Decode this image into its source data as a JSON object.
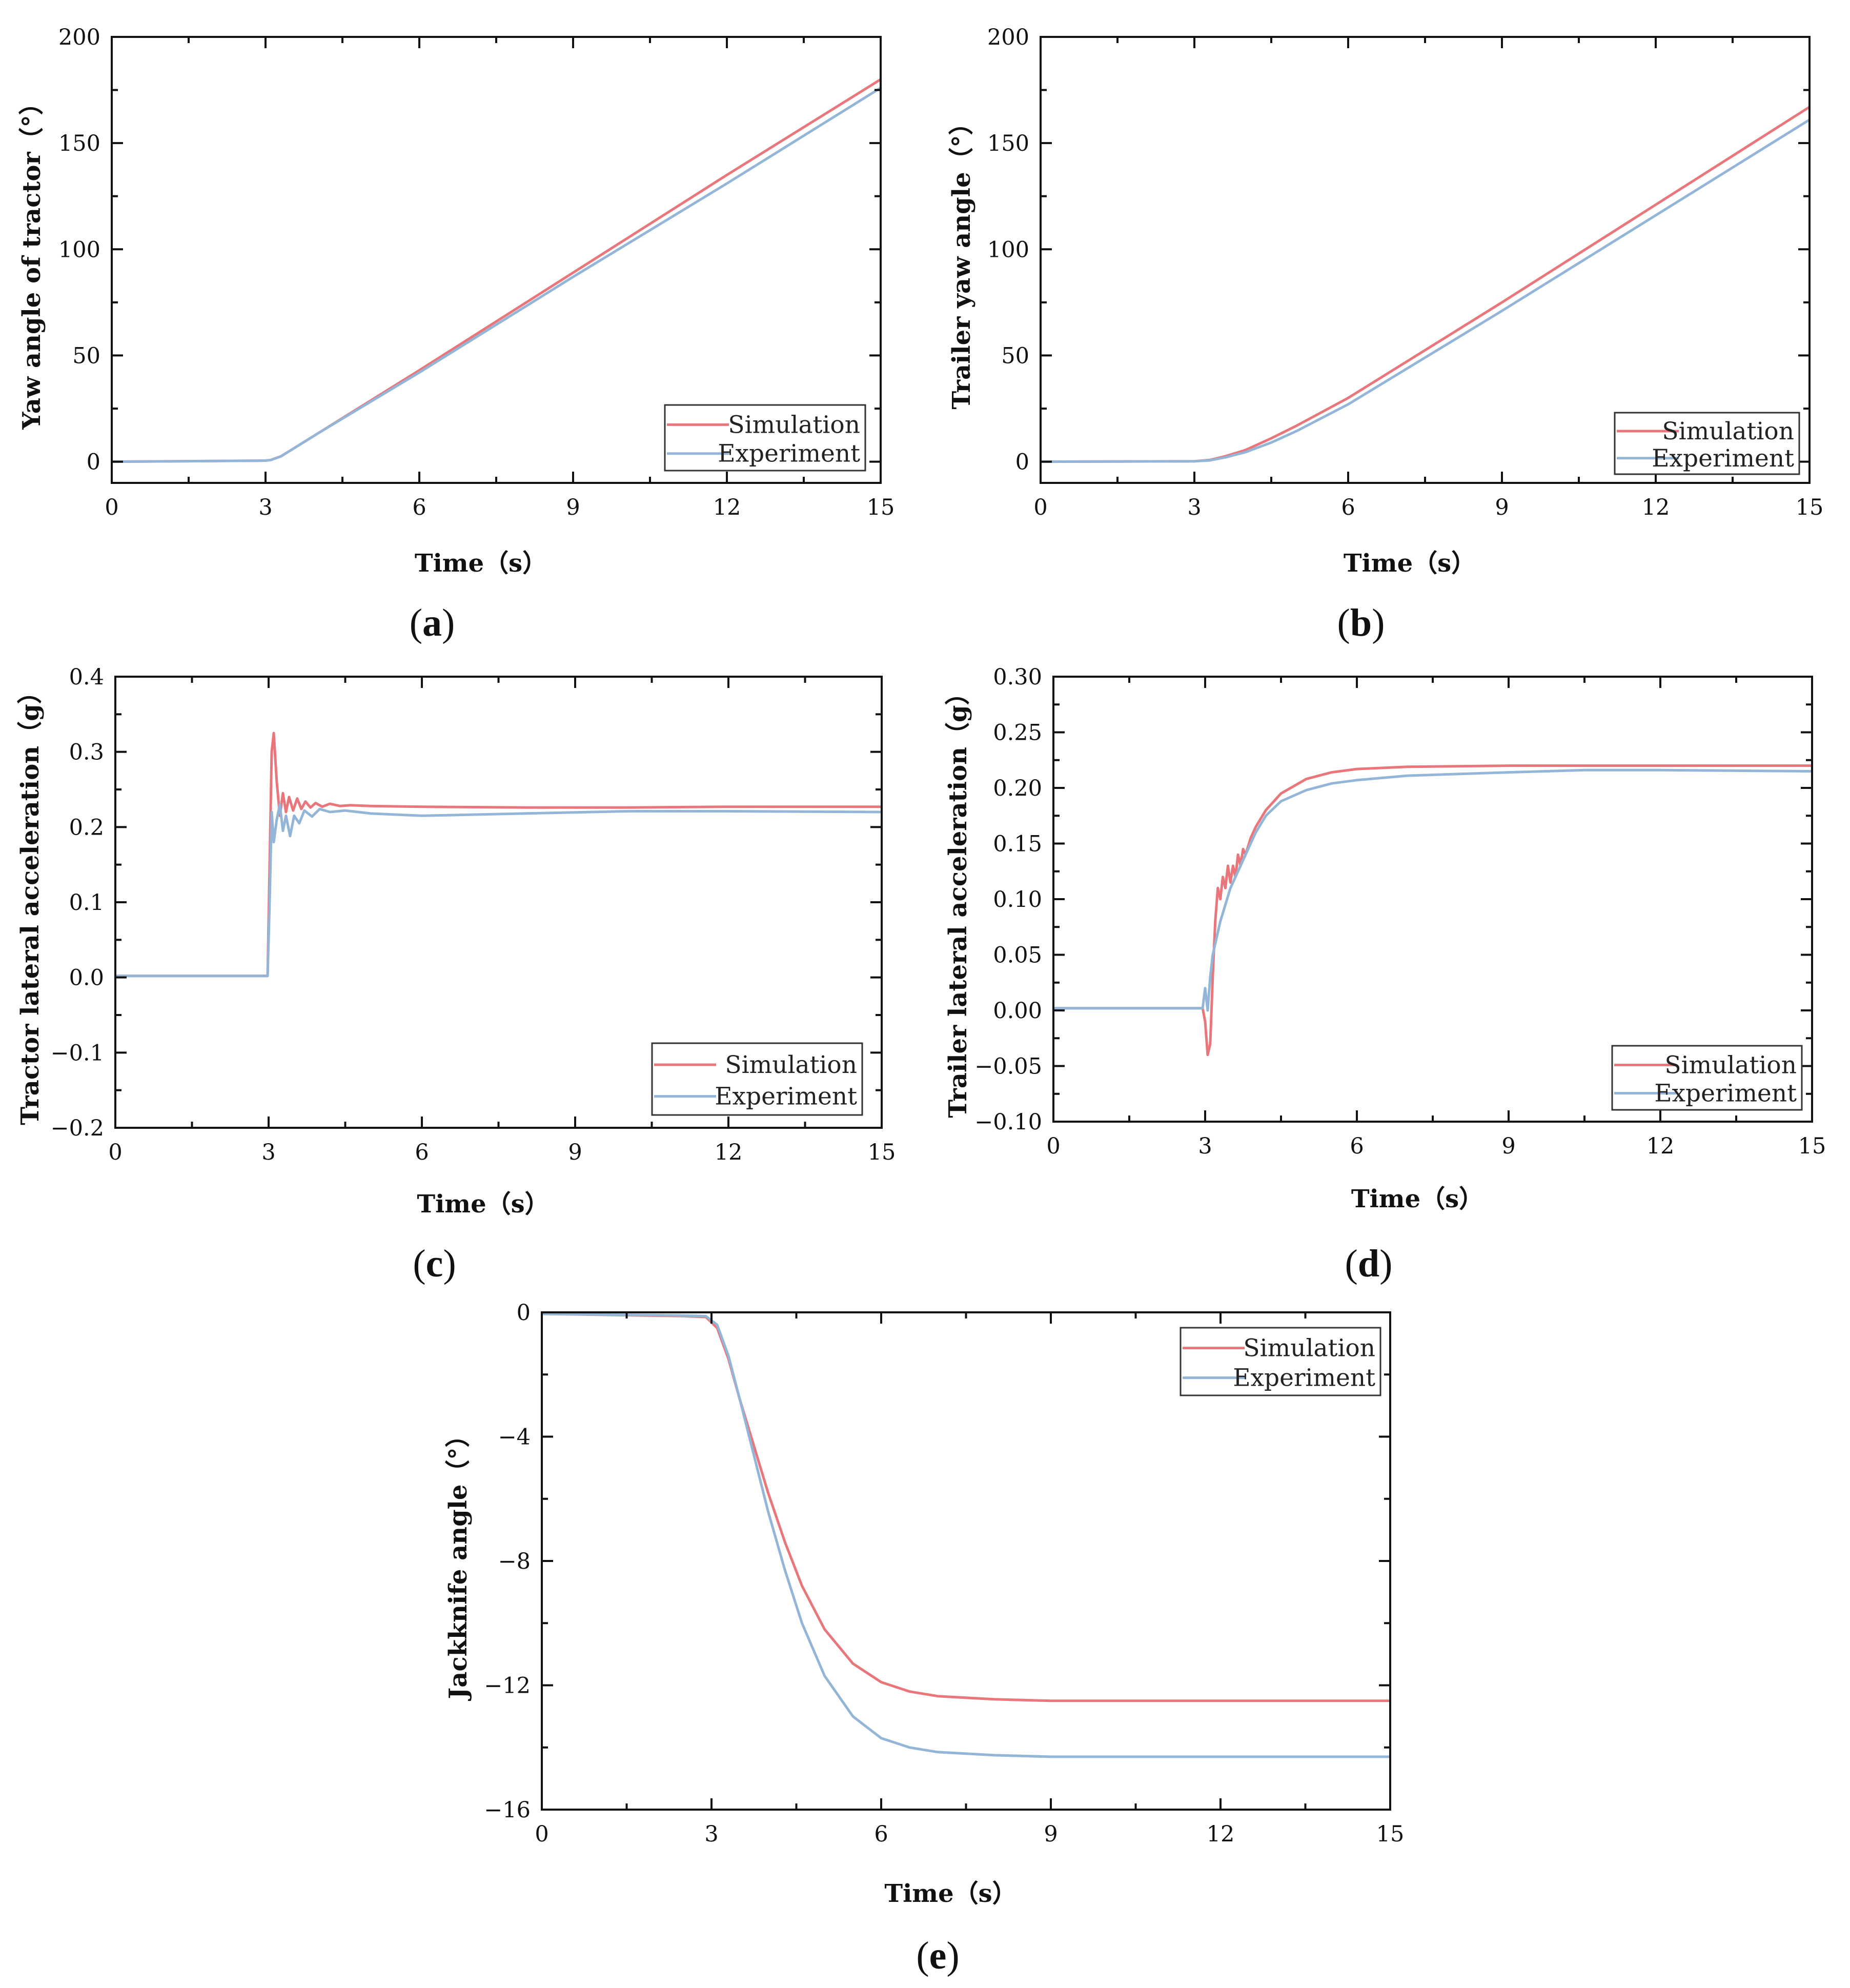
{
  "colors": {
    "simulation": "#e8767a",
    "experiment": "#93b6d8",
    "axis": "#111111"
  },
  "chart_data": [
    {
      "id": "a",
      "type": "line",
      "caption": "a",
      "title": "",
      "xlabel": "Time（s）",
      "ylabel": "Yaw angle of tractor（°）",
      "xlim": [
        0,
        15
      ],
      "ylim": [
        -10,
        200
      ],
      "xticks": [
        0,
        3,
        6,
        9,
        12,
        15
      ],
      "yticks": [
        0,
        50,
        100,
        150,
        200
      ],
      "ytick_labels": [
        "0",
        "50",
        "100",
        "150",
        "200"
      ],
      "legend": {
        "position": "bottom-right",
        "entries": [
          "Simulation",
          "Experiment"
        ]
      },
      "series": [
        {
          "name": "Simulation",
          "x": [
            0,
            3,
            3.1,
            3.3,
            3.6,
            4,
            5,
            6,
            9,
            12,
            15
          ],
          "y": [
            0,
            0.5,
            0.8,
            2.5,
            7,
            13,
            28,
            43,
            89,
            135,
            180
          ]
        },
        {
          "name": "Experiment",
          "x": [
            0,
            3,
            3.1,
            3.3,
            3.6,
            4,
            5,
            6,
            9,
            12,
            15
          ],
          "y": [
            0,
            0.5,
            0.8,
            2.5,
            7,
            13,
            27.5,
            42,
            87,
            131,
            176
          ]
        }
      ]
    },
    {
      "id": "b",
      "type": "line",
      "caption": "b",
      "title": "",
      "xlabel": "Time（s）",
      "ylabel": "Trailer yaw angle（°）",
      "xlim": [
        0,
        15
      ],
      "ylim": [
        -10,
        200
      ],
      "xticks": [
        0,
        3,
        6,
        9,
        12,
        15
      ],
      "yticks": [
        0,
        50,
        100,
        150,
        200
      ],
      "ytick_labels": [
        "0",
        "50",
        "100",
        "150",
        "200"
      ],
      "legend": {
        "position": "bottom-right",
        "entries": [
          "Simulation",
          "Experiment"
        ]
      },
      "series": [
        {
          "name": "Simulation",
          "x": [
            0,
            3,
            3.3,
            3.6,
            4,
            4.5,
            5,
            6,
            9,
            12,
            15
          ],
          "y": [
            0,
            0.2,
            0.8,
            2.5,
            5.5,
            11,
            17,
            30,
            75,
            121,
            167
          ]
        },
        {
          "name": "Experiment",
          "x": [
            0,
            3,
            3.3,
            3.6,
            4,
            4.5,
            5,
            6,
            9,
            12,
            15
          ],
          "y": [
            0,
            0.2,
            0.6,
            2,
            4.5,
            9,
            14.5,
            27,
            71,
            116,
            161
          ]
        }
      ]
    },
    {
      "id": "c",
      "type": "line",
      "caption": "c",
      "title": "",
      "xlabel": "Time（s）",
      "ylabel": "Tractor lateral acceleration（g）",
      "xlim": [
        0,
        15
      ],
      "ylim": [
        -0.2,
        0.4
      ],
      "xticks": [
        0,
        3,
        6,
        9,
        12,
        15
      ],
      "yticks": [
        -0.2,
        -0.1,
        0.0,
        0.1,
        0.2,
        0.3,
        0.4
      ],
      "ytick_labels": [
        "−0.2",
        "−0.1",
        "0.0",
        "0.1",
        "0.2",
        "0.3",
        "0.4"
      ],
      "legend": {
        "position": "bottom-right",
        "entries": [
          "Simulation",
          "Experiment"
        ]
      },
      "series": [
        {
          "name": "Simulation",
          "x": [
            0,
            2.98,
            3.02,
            3.06,
            3.1,
            3.16,
            3.22,
            3.28,
            3.34,
            3.4,
            3.48,
            3.56,
            3.64,
            3.72,
            3.82,
            3.92,
            4.05,
            4.2,
            4.4,
            4.6,
            5,
            6,
            8,
            10,
            12,
            15
          ],
          "y": [
            0.002,
            0.002,
            0.15,
            0.3,
            0.325,
            0.26,
            0.215,
            0.245,
            0.22,
            0.24,
            0.222,
            0.238,
            0.224,
            0.234,
            0.226,
            0.232,
            0.227,
            0.231,
            0.228,
            0.229,
            0.228,
            0.227,
            0.226,
            0.226,
            0.227,
            0.227
          ]
        },
        {
          "name": "Experiment",
          "x": [
            0,
            2.98,
            3.02,
            3.06,
            3.1,
            3.16,
            3.22,
            3.28,
            3.34,
            3.42,
            3.5,
            3.6,
            3.7,
            3.85,
            4,
            4.2,
            4.5,
            5,
            6,
            8,
            10,
            12,
            15
          ],
          "y": [
            0.002,
            0.002,
            0.1,
            0.22,
            0.18,
            0.21,
            0.23,
            0.195,
            0.215,
            0.188,
            0.215,
            0.205,
            0.222,
            0.214,
            0.224,
            0.22,
            0.222,
            0.218,
            0.215,
            0.218,
            0.221,
            0.221,
            0.22
          ]
        }
      ]
    },
    {
      "id": "d",
      "type": "line",
      "caption": "d",
      "title": "",
      "xlabel": "Time（s）",
      "ylabel": "Trailer lateral acceleration（g）",
      "xlim": [
        0,
        15
      ],
      "ylim": [
        -0.1,
        0.3
      ],
      "xticks": [
        0,
        3,
        6,
        9,
        12,
        15
      ],
      "yticks": [
        -0.1,
        -0.05,
        0.0,
        0.05,
        0.1,
        0.15,
        0.2,
        0.25,
        0.3
      ],
      "ytick_labels": [
        "−0.10",
        "−0.05",
        "0.00",
        "0.05",
        "0.10",
        "0.15",
        "0.20",
        "0.25",
        "0.30"
      ],
      "legend": {
        "position": "bottom-right",
        "entries": [
          "Simulation",
          "Experiment"
        ]
      },
      "series": [
        {
          "name": "Simulation",
          "x": [
            0,
            2.95,
            3.0,
            3.05,
            3.1,
            3.15,
            3.2,
            3.25,
            3.3,
            3.35,
            3.4,
            3.45,
            3.5,
            3.55,
            3.6,
            3.65,
            3.7,
            3.75,
            3.8,
            3.9,
            4.0,
            4.2,
            4.5,
            5,
            5.5,
            6,
            7,
            9,
            12,
            15
          ],
          "y": [
            0.002,
            0.002,
            -0.01,
            -0.04,
            -0.03,
            0.03,
            0.08,
            0.11,
            0.1,
            0.12,
            0.11,
            0.13,
            0.115,
            0.13,
            0.12,
            0.14,
            0.13,
            0.145,
            0.14,
            0.155,
            0.165,
            0.18,
            0.195,
            0.208,
            0.214,
            0.217,
            0.219,
            0.22,
            0.22,
            0.22
          ]
        },
        {
          "name": "Experiment",
          "x": [
            0,
            2.95,
            3.0,
            3.05,
            3.1,
            3.15,
            3.2,
            3.3,
            3.4,
            3.5,
            3.6,
            3.7,
            3.8,
            3.9,
            4.0,
            4.2,
            4.5,
            5,
            5.5,
            6,
            7,
            9,
            10.5,
            12,
            15
          ],
          "y": [
            0.002,
            0.002,
            0.02,
            0.0,
            0.03,
            0.05,
            0.06,
            0.08,
            0.095,
            0.11,
            0.12,
            0.13,
            0.14,
            0.15,
            0.16,
            0.175,
            0.188,
            0.198,
            0.204,
            0.207,
            0.211,
            0.214,
            0.216,
            0.216,
            0.215
          ]
        }
      ]
    },
    {
      "id": "e",
      "type": "line",
      "caption": "e",
      "title": "",
      "xlabel": "Time（s）",
      "ylabel": "Jackknife angle（°）",
      "xlim": [
        0,
        15
      ],
      "ylim": [
        -16,
        0
      ],
      "xticks": [
        0,
        3,
        6,
        9,
        12,
        15
      ],
      "yticks": [
        -16,
        -12,
        -8,
        -4,
        0
      ],
      "ytick_labels": [
        "−16",
        "−12",
        "−8",
        "−4",
        "0"
      ],
      "legend": {
        "position": "top-right",
        "entries": [
          "Simulation",
          "Experiment"
        ]
      },
      "series": [
        {
          "name": "Simulation",
          "x": [
            0,
            2.5,
            2.9,
            3.1,
            3.3,
            3.5,
            3.75,
            4,
            4.3,
            4.6,
            5,
            5.5,
            6,
            6.5,
            7,
            8,
            9,
            10,
            12,
            15
          ],
          "y": [
            -0.05,
            -0.12,
            -0.15,
            -0.5,
            -1.5,
            -2.8,
            -4.3,
            -5.8,
            -7.4,
            -8.8,
            -10.2,
            -11.3,
            -11.9,
            -12.2,
            -12.35,
            -12.45,
            -12.5,
            -12.5,
            -12.5,
            -12.5
          ]
        },
        {
          "name": "Experiment",
          "x": [
            0,
            2.5,
            2.9,
            3.1,
            3.3,
            3.5,
            3.75,
            4,
            4.3,
            4.6,
            5,
            5.5,
            6,
            6.5,
            7,
            8,
            9,
            10,
            12,
            15
          ],
          "y": [
            -0.05,
            -0.1,
            -0.12,
            -0.4,
            -1.4,
            -2.8,
            -4.6,
            -6.4,
            -8.3,
            -10,
            -11.7,
            -13,
            -13.7,
            -14.0,
            -14.15,
            -14.25,
            -14.3,
            -14.3,
            -14.3,
            -14.3
          ]
        }
      ]
    }
  ]
}
